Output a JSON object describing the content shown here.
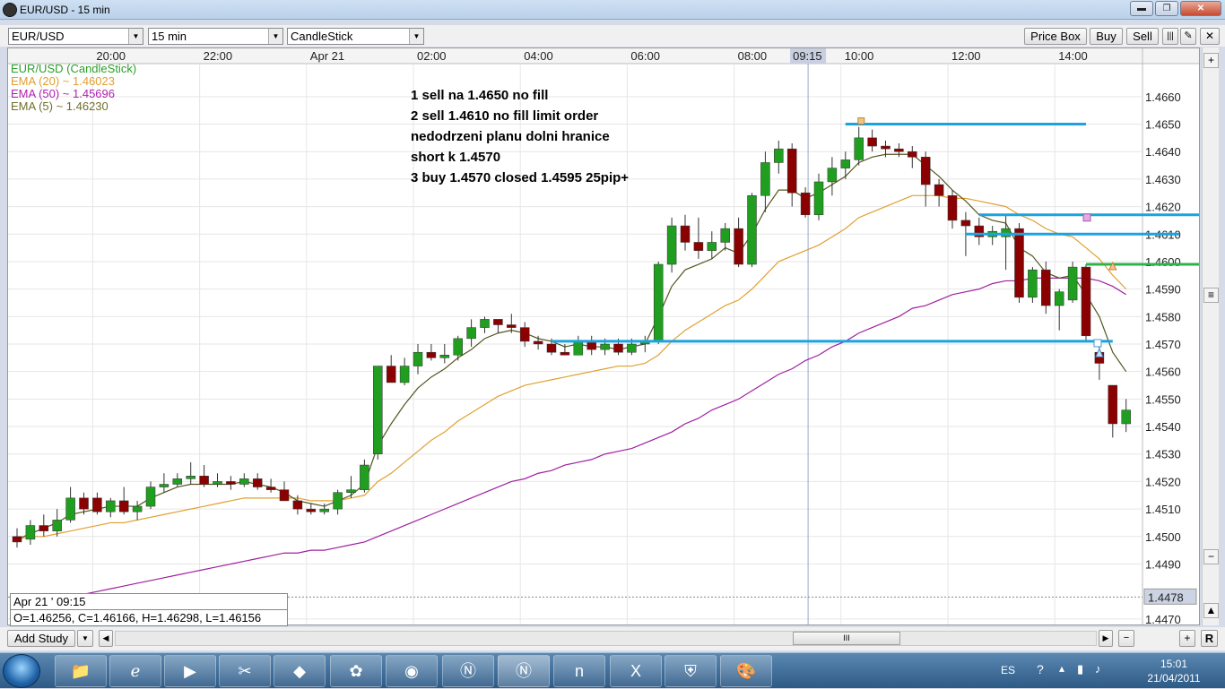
{
  "window": {
    "title": "EUR/USD - 15 min",
    "minimize": "▬",
    "maximize": "❐",
    "close": "✕"
  },
  "toolbar": {
    "symbol": "EUR/USD",
    "timeframe": "15 min",
    "chart_type": "CandleStick",
    "price_box": "Price Box",
    "buy": "Buy",
    "sell": "Sell",
    "icon_a": "|||",
    "icon_b": "✎",
    "close": "✕"
  },
  "legend": {
    "series": "EUR/USD (CandleStick)",
    "ema20": "EMA (20) ~ 1.46023",
    "ema50": "EMA (50) ~ 1.45696",
    "ema5": "EMA (5) ~ 1.46230"
  },
  "annotation": [
    "1 sell na 1.4650 no fill",
    "2 sell 1.4610 no fill limit order",
    "nedodrzeni planu dolni hranice",
    "short k 1.4570",
    "3 buy 1.4570 closed 1.4595 25pip+"
  ],
  "ohlc": {
    "date": "Apr 21 ' 09:15",
    "values": "O=1.46256, C=1.46166, H=1.46298, L=1.46156"
  },
  "cursor_time": "09:15",
  "current_price": "1.4478",
  "bottom": {
    "add_study": "Add Study",
    "scroll_thumb": "III",
    "r_button": "R"
  },
  "tray": {
    "lang": "ES",
    "time": "15:01",
    "date": "21/04/2011"
  },
  "colors": {
    "bull": "#1f9e1f",
    "bear": "#8b0000",
    "ema20": "#e0a030",
    "ema50": "#a020a0",
    "ema5": "#555520",
    "level_line": "#1aa3e0",
    "target_line": "#2db34a"
  },
  "chart_data": {
    "type": "candlestick",
    "title": "EUR/USD (CandleStick)",
    "x_ticks": [
      "20:00",
      "22:00",
      "Apr 21",
      "02:00",
      "04:00",
      "06:00",
      "08:00",
      "10:00",
      "12:00",
      "14:00"
    ],
    "y_ticks": [
      "1.4470",
      "1.4490",
      "1.4500",
      "1.4510",
      "1.4520",
      "1.4530",
      "1.4540",
      "1.4550",
      "1.4560",
      "1.4570",
      "1.4580",
      "1.4590",
      "1.4600",
      "1.4610",
      "1.4620",
      "1.4630",
      "1.4640",
      "1.4650",
      "1.4660"
    ],
    "ylim": [
      1.4468,
      1.4672
    ],
    "candles": [
      [
        1.45,
        1.4503,
        1.4496,
        1.4498
      ],
      [
        1.4499,
        1.4506,
        1.4497,
        1.4504
      ],
      [
        1.4504,
        1.4508,
        1.45,
        1.4502
      ],
      [
        1.4502,
        1.451,
        1.45,
        1.4506
      ],
      [
        1.4506,
        1.4518,
        1.4505,
        1.4514
      ],
      [
        1.4514,
        1.4516,
        1.4508,
        1.451
      ],
      [
        1.4514,
        1.4516,
        1.4508,
        1.4509
      ],
      [
        1.4509,
        1.4514,
        1.4507,
        1.4513
      ],
      [
        1.4513,
        1.4518,
        1.4508,
        1.4509
      ],
      [
        1.4509,
        1.4513,
        1.4506,
        1.4511
      ],
      [
        1.4511,
        1.452,
        1.451,
        1.4518
      ],
      [
        1.4518,
        1.4523,
        1.4516,
        1.4519
      ],
      [
        1.4519,
        1.4523,
        1.4518,
        1.4521
      ],
      [
        1.4521,
        1.4527,
        1.4519,
        1.4522
      ],
      [
        1.4522,
        1.4526,
        1.4518,
        1.4519
      ],
      [
        1.4519,
        1.4523,
        1.4518,
        1.452
      ],
      [
        1.452,
        1.4522,
        1.4517,
        1.4519
      ],
      [
        1.4519,
        1.4523,
        1.4518,
        1.4521
      ],
      [
        1.4521,
        1.4523,
        1.4517,
        1.4518
      ],
      [
        1.4518,
        1.4521,
        1.4516,
        1.4517
      ],
      [
        1.4517,
        1.452,
        1.4513,
        1.4513
      ],
      [
        1.4513,
        1.4515,
        1.4508,
        1.451
      ],
      [
        1.451,
        1.4512,
        1.4508,
        1.4509
      ],
      [
        1.4509,
        1.4512,
        1.4508,
        1.451
      ],
      [
        1.451,
        1.4517,
        1.4508,
        1.4516
      ],
      [
        1.4516,
        1.4522,
        1.4514,
        1.4517
      ],
      [
        1.4517,
        1.4528,
        1.4516,
        1.4526
      ],
      [
        1.453,
        1.456,
        1.4528,
        1.4562
      ],
      [
        1.4562,
        1.4566,
        1.4556,
        1.4556
      ],
      [
        1.4556,
        1.4565,
        1.4555,
        1.4562
      ],
      [
        1.4562,
        1.457,
        1.4559,
        1.4567
      ],
      [
        1.4567,
        1.457,
        1.4564,
        1.4565
      ],
      [
        1.4565,
        1.457,
        1.4563,
        1.4566
      ],
      [
        1.4566,
        1.4573,
        1.4564,
        1.4572
      ],
      [
        1.4572,
        1.4579,
        1.4569,
        1.4576
      ],
      [
        1.4576,
        1.458,
        1.4574,
        1.4579
      ],
      [
        1.4579,
        1.4578,
        1.4574,
        1.4577
      ],
      [
        1.4577,
        1.4581,
        1.4574,
        1.4576
      ],
      [
        1.4576,
        1.4578,
        1.4569,
        1.4571
      ],
      [
        1.4571,
        1.4573,
        1.4568,
        1.457
      ],
      [
        1.457,
        1.4572,
        1.4566,
        1.4567
      ],
      [
        1.4567,
        1.457,
        1.4566,
        1.4566
      ],
      [
        1.4566,
        1.4573,
        1.4566,
        1.4571
      ],
      [
        1.4571,
        1.4573,
        1.4566,
        1.4568
      ],
      [
        1.4568,
        1.4572,
        1.4566,
        1.457
      ],
      [
        1.457,
        1.4572,
        1.4566,
        1.4567
      ],
      [
        1.4567,
        1.4572,
        1.4566,
        1.457
      ],
      [
        1.457,
        1.4573,
        1.4567,
        1.4571
      ],
      [
        1.4571,
        1.46,
        1.457,
        1.4599
      ],
      [
        1.4599,
        1.4616,
        1.4596,
        1.4613
      ],
      [
        1.4613,
        1.4617,
        1.4604,
        1.4607
      ],
      [
        1.4607,
        1.4616,
        1.4601,
        1.4604
      ],
      [
        1.4604,
        1.4611,
        1.4601,
        1.4607
      ],
      [
        1.4607,
        1.4614,
        1.4604,
        1.4612
      ],
      [
        1.4612,
        1.4616,
        1.4598,
        1.4599
      ],
      [
        1.4599,
        1.4625,
        1.4598,
        1.4624
      ],
      [
        1.4624,
        1.464,
        1.4618,
        1.4636
      ],
      [
        1.4636,
        1.4644,
        1.4632,
        1.4641
      ],
      [
        1.4641,
        1.4643,
        1.462,
        1.4625
      ],
      [
        1.4625,
        1.4627,
        1.4616,
        1.4617
      ],
      [
        1.4617,
        1.4632,
        1.4615,
        1.4629
      ],
      [
        1.4629,
        1.4638,
        1.4624,
        1.4634
      ],
      [
        1.4634,
        1.464,
        1.463,
        1.4637
      ],
      [
        1.4637,
        1.4649,
        1.4635,
        1.4645
      ],
      [
        1.4645,
        1.4648,
        1.464,
        1.4642
      ],
      [
        1.4642,
        1.4644,
        1.4638,
        1.4641
      ],
      [
        1.4641,
        1.4643,
        1.4638,
        1.464
      ],
      [
        1.464,
        1.4642,
        1.4634,
        1.4638
      ],
      [
        1.4638,
        1.464,
        1.462,
        1.4628
      ],
      [
        1.4628,
        1.463,
        1.462,
        1.4624
      ],
      [
        1.4624,
        1.4626,
        1.4612,
        1.4615
      ],
      [
        1.4615,
        1.4618,
        1.4602,
        1.4613
      ],
      [
        1.4613,
        1.4616,
        1.4606,
        1.4609
      ],
      [
        1.4609,
        1.4613,
        1.4606,
        1.4611
      ],
      [
        1.4609,
        1.4617,
        1.4597,
        1.4612
      ],
      [
        1.4612,
        1.4614,
        1.4585,
        1.4587
      ],
      [
        1.4587,
        1.4598,
        1.4585,
        1.4597
      ],
      [
        1.4597,
        1.46,
        1.4581,
        1.4584
      ],
      [
        1.4584,
        1.459,
        1.4575,
        1.4589
      ],
      [
        1.4586,
        1.46,
        1.4585,
        1.4598
      ],
      [
        1.4598,
        1.4599,
        1.4571,
        1.4573
      ],
      [
        1.4567,
        1.457,
        1.4557,
        1.4563
      ],
      [
        1.4555,
        1.4555,
        1.4536,
        1.4541
      ],
      [
        1.4541,
        1.455,
        1.4538,
        1.4546
      ]
    ],
    "ema5": [
      1.4499,
      1.4501,
      1.4503,
      1.4505,
      1.4508,
      1.4509,
      1.451,
      1.4511,
      1.4511,
      1.4511,
      1.4514,
      1.4516,
      1.4518,
      1.4519,
      1.4519,
      1.4519,
      1.4519,
      1.452,
      1.4519,
      1.4518,
      1.4516,
      1.4513,
      1.4512,
      1.4511,
      1.4513,
      1.4515,
      1.4519,
      1.4533,
      1.4541,
      1.4548,
      1.4554,
      1.4558,
      1.4561,
      1.4565,
      1.4568,
      1.4572,
      1.4574,
      1.4575,
      1.4574,
      1.4572,
      1.4571,
      1.4569,
      1.457,
      1.4569,
      1.4569,
      1.4568,
      1.4569,
      1.457,
      1.458,
      1.4591,
      1.4597,
      1.4599,
      1.4601,
      1.4605,
      1.4603,
      1.461,
      1.4619,
      1.4626,
      1.4626,
      1.4623,
      1.4625,
      1.4628,
      1.4631,
      1.4636,
      1.4638,
      1.4639,
      1.4639,
      1.4639,
      1.4635,
      1.4631,
      1.4626,
      1.4622,
      1.4617,
      1.4615,
      1.4614,
      1.4605,
      1.4602,
      1.4596,
      1.4594,
      1.4595,
      1.4588,
      1.458,
      1.4567,
      1.456
    ],
    "ema20": [
      1.4499,
      1.45,
      1.45,
      1.4501,
      1.4502,
      1.4503,
      1.4504,
      1.4505,
      1.4505,
      1.4506,
      1.4507,
      1.4508,
      1.4509,
      1.451,
      1.4511,
      1.4512,
      1.4513,
      1.4514,
      1.4514,
      1.4514,
      1.4514,
      1.4514,
      1.4513,
      1.4513,
      1.4513,
      1.4514,
      1.4515,
      1.452,
      1.4523,
      1.4527,
      1.4531,
      1.4535,
      1.4538,
      1.4542,
      1.4545,
      1.4548,
      1.4551,
      1.4553,
      1.4555,
      1.4556,
      1.4557,
      1.4558,
      1.4559,
      1.456,
      1.4561,
      1.4562,
      1.4562,
      1.4563,
      1.4566,
      1.4571,
      1.4575,
      1.4578,
      1.4581,
      1.4584,
      1.4586,
      1.459,
      1.4595,
      1.46,
      1.4602,
      1.4604,
      1.4606,
      1.4609,
      1.4612,
      1.4616,
      1.4618,
      1.462,
      1.4622,
      1.4624,
      1.4624,
      1.4624,
      1.4623,
      1.4623,
      1.4622,
      1.4621,
      1.462,
      1.4617,
      1.4615,
      1.4612,
      1.461,
      1.4609,
      1.4605,
      1.4601,
      1.4595,
      1.459
    ],
    "ema50": [
      1.4474,
      1.4475,
      1.4476,
      1.4477,
      1.4478,
      1.4479,
      1.448,
      1.4481,
      1.4482,
      1.4483,
      1.4484,
      1.4485,
      1.4486,
      1.4487,
      1.4488,
      1.4489,
      1.449,
      1.4491,
      1.4492,
      1.4493,
      1.4494,
      1.4494,
      1.4495,
      1.4495,
      1.4496,
      1.4497,
      1.4498,
      1.45,
      1.4502,
      1.4504,
      1.4506,
      1.4508,
      1.451,
      1.4512,
      1.4514,
      1.4516,
      1.4518,
      1.452,
      1.4521,
      1.4523,
      1.4524,
      1.4526,
      1.4527,
      1.4528,
      1.453,
      1.4531,
      1.4532,
      1.4534,
      1.4536,
      1.4538,
      1.4541,
      1.4543,
      1.4546,
      1.4548,
      1.455,
      1.4553,
      1.4556,
      1.4559,
      1.4561,
      1.4564,
      1.4566,
      1.4569,
      1.4571,
      1.4574,
      1.4576,
      1.4578,
      1.458,
      1.4583,
      1.4584,
      1.4586,
      1.4588,
      1.4589,
      1.459,
      1.4592,
      1.4593,
      1.4593,
      1.4594,
      1.4594,
      1.4594,
      1.4594,
      1.4594,
      1.4593,
      1.4591,
      1.4588
    ],
    "levels": [
      {
        "price": 1.465,
        "from": 62,
        "to": 80,
        "color": "#1aa3e0"
      },
      {
        "price": 1.4617,
        "from": 72,
        "to": 89,
        "color": "#1aa3e0"
      },
      {
        "price": 1.461,
        "from": 71,
        "to": 87,
        "color": "#1aa3e0"
      },
      {
        "price": 1.4571,
        "from": 40,
        "to": 82,
        "color": "#1aa3e0"
      },
      {
        "price": 1.4599,
        "from": 80,
        "to": 90,
        "color": "#2db34a"
      }
    ]
  }
}
